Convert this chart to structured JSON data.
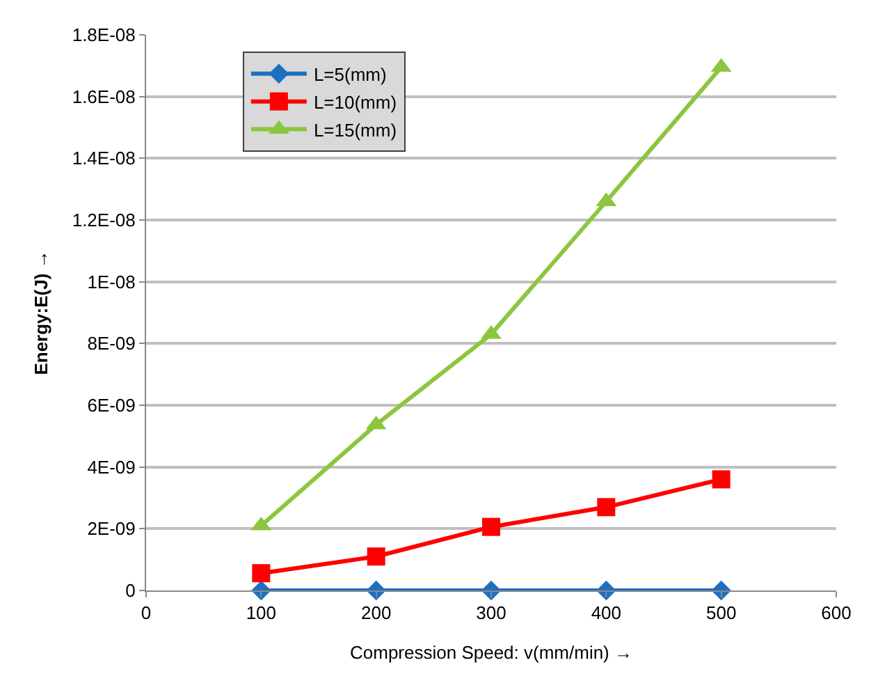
{
  "chart_data": {
    "type": "line",
    "xlabel": "Compression Speed: v(mm/min) →",
    "ylabel": "Energy:E(J) →",
    "x": [
      100,
      200,
      300,
      400,
      500
    ],
    "series": [
      {
        "name": "L=5(mm)",
        "color": "#1f6fc1",
        "marker": "diamond",
        "values": [
          0,
          0,
          0,
          0,
          0
        ]
      },
      {
        "name": "L=10(mm)",
        "color": "#ff0000",
        "marker": "square",
        "values": [
          5.6e-10,
          1.1e-09,
          2.06e-09,
          2.7e-09,
          3.6e-09
        ]
      },
      {
        "name": "L=15(mm)",
        "color": "#8cc63f",
        "marker": "triangle",
        "values": [
          2.1e-09,
          5.37e-09,
          8.3e-09,
          1.26e-08,
          1.695e-08
        ]
      }
    ],
    "xlim": [
      0,
      600
    ],
    "xticks": [
      0,
      100,
      200,
      300,
      400,
      500,
      600
    ],
    "ylim": [
      0,
      1.8e-08
    ],
    "yticks": [
      {
        "value": 0,
        "label": "0"
      },
      {
        "value": 2e-09,
        "label": "2E-09"
      },
      {
        "value": 4e-09,
        "label": "4E-09"
      },
      {
        "value": 6e-09,
        "label": "6E-09"
      },
      {
        "value": 8e-09,
        "label": "8E-09"
      },
      {
        "value": 1e-08,
        "label": "1E-08"
      },
      {
        "value": 1.2e-08,
        "label": "1.2E-08"
      },
      {
        "value": 1.4e-08,
        "label": "1.4E-08"
      },
      {
        "value": 1.6e-08,
        "label": "1.6E-08"
      },
      {
        "value": 1.8e-08,
        "label": "1.8E-08"
      }
    ],
    "grid": "y",
    "legend": "top left",
    "line_style": "solid"
  }
}
